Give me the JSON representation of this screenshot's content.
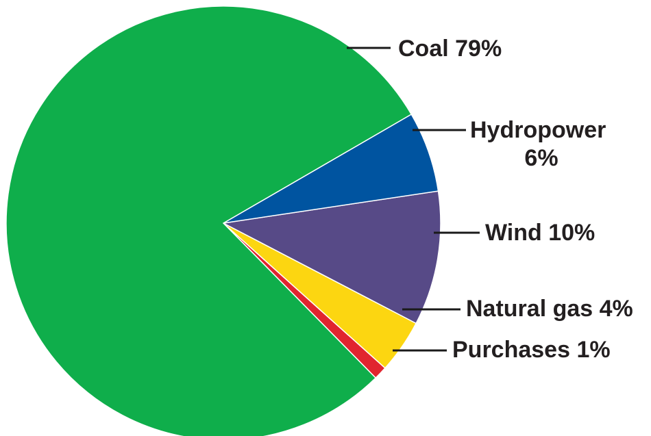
{
  "chart_data": {
    "type": "pie",
    "title": "",
    "slices": [
      {
        "name": "Coal",
        "label": "Coal  79%",
        "value": 79,
        "color": "#0fae4b"
      },
      {
        "name": "Hydropower",
        "label": "Hydropower",
        "label2": "6%",
        "value": 6,
        "color": "#0054a0"
      },
      {
        "name": "Wind",
        "label": "Wind  10%",
        "value": 10,
        "color": "#574a87"
      },
      {
        "name": "Natural gas",
        "label": "Natural gas  4%",
        "value": 4,
        "color": "#fcd611"
      },
      {
        "name": "Purchases",
        "label": "Purchases  1%",
        "value": 1,
        "color": "#e1252f"
      }
    ],
    "legend": "none",
    "grid": false
  }
}
